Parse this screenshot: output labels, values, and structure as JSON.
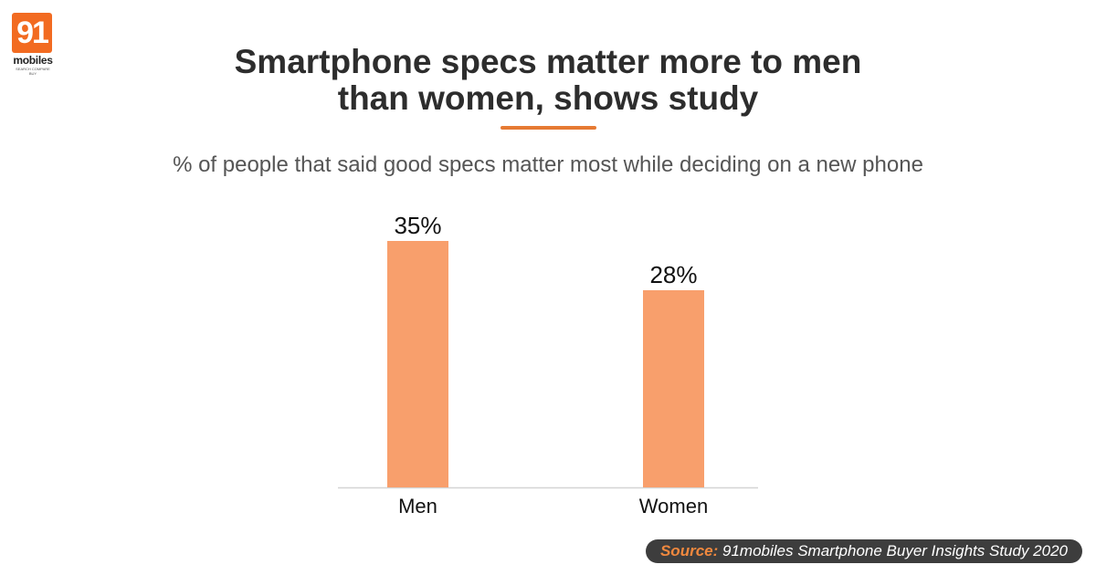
{
  "brand": {
    "logo_number": "91",
    "logo_word": "mobiles",
    "logo_tagline": "SEARCH COMPARE BUY",
    "accent": "#f26b21"
  },
  "title_line1": "Smartphone specs matter more to men",
  "title_line2": "than women, shows study",
  "subtitle": "% of people that said good specs matter most while deciding on a new phone",
  "source": {
    "label": "Source:",
    "text": "91mobiles Smartphone Buyer Insights Study 2020"
  },
  "chart_data": {
    "type": "bar",
    "title": "Smartphone specs matter more to men than women, shows study",
    "subtitle": "% of people that said good specs matter most while deciding on a new phone",
    "categories": [
      "Men",
      "Women"
    ],
    "values": [
      35,
      28
    ],
    "value_labels": [
      "35%",
      "28%"
    ],
    "xlabel": "",
    "ylabel": "",
    "ylim": [
      0,
      35
    ],
    "grid": false,
    "legend": "none",
    "bar_color": "#f89f6c"
  }
}
